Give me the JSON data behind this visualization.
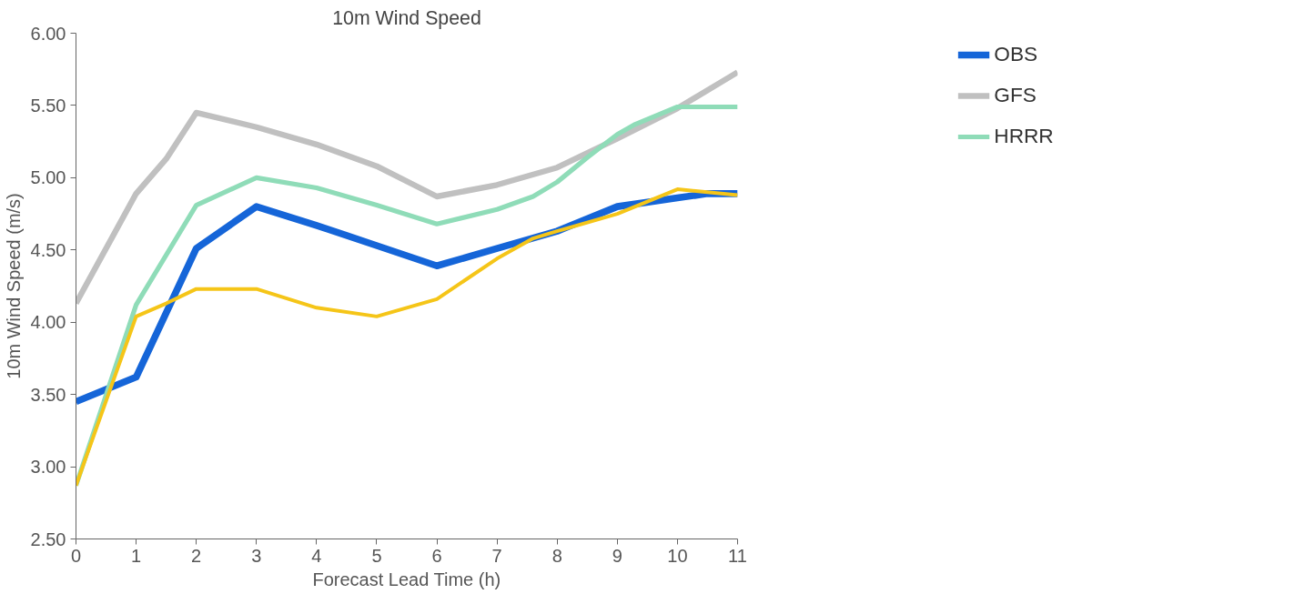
{
  "chart_data": {
    "type": "line",
    "title": "10m Wind Speed",
    "xlabel": "Forecast Lead Time (h)",
    "ylabel": "10m Wind Speed (m/s)",
    "xlim": [
      0,
      11
    ],
    "xticks": [
      0,
      1,
      2,
      3,
      4,
      5,
      6,
      7,
      8,
      9,
      10,
      11
    ],
    "ylim": [
      2.5,
      6.0
    ],
    "yticks": [
      {
        "value": 2.5,
        "label": "2.50"
      },
      {
        "value": 3.0,
        "label": "3.00"
      },
      {
        "value": 3.5,
        "label": "3.50"
      },
      {
        "value": 4.0,
        "label": "4.00"
      },
      {
        "value": 4.5,
        "label": "4.50"
      },
      {
        "value": 5.0,
        "label": "5.00"
      },
      {
        "value": 5.5,
        "label": "5.50"
      },
      {
        "value": 6.0,
        "label": "6.00"
      }
    ],
    "grid": false,
    "legend": "right",
    "marker": "none",
    "line_style": "solid",
    "series": [
      {
        "name": "OBS",
        "color": "#1565d8",
        "x": [
          0,
          1,
          2,
          3,
          4,
          5,
          6,
          7,
          8,
          9,
          10,
          10.5,
          11
        ],
        "values": [
          3.45,
          3.62,
          4.51,
          4.8,
          4.67,
          4.53,
          4.39,
          4.51,
          4.63,
          4.8,
          4.86,
          4.89,
          4.89
        ]
      },
      {
        "name": "GFS",
        "color": "#c0c0c0",
        "x": [
          0,
          1,
          1.5,
          2,
          3,
          4,
          5,
          6,
          7,
          8,
          9,
          10,
          11
        ],
        "values": [
          4.13,
          4.89,
          5.13,
          5.45,
          5.35,
          5.23,
          5.08,
          4.87,
          4.95,
          5.07,
          5.27,
          5.48,
          5.73
        ]
      },
      {
        "name": "HRRR",
        "color": "#8fdcb8",
        "x": [
          0,
          1,
          2,
          3,
          4,
          5,
          6,
          7,
          7.6,
          8,
          8.5,
          9,
          9.3,
          10,
          11
        ],
        "values": [
          2.87,
          4.12,
          4.81,
          5.0,
          4.93,
          4.81,
          4.68,
          4.78,
          4.87,
          4.97,
          5.14,
          5.3,
          5.37,
          5.49,
          5.49
        ]
      },
      {
        "color": "#f5c518",
        "x": [
          0,
          1,
          1.5,
          2,
          3,
          4,
          5,
          6,
          7,
          7.6,
          8,
          9,
          10,
          11
        ],
        "values": [
          2.87,
          4.04,
          4.13,
          4.23,
          4.23,
          4.1,
          4.04,
          4.16,
          4.44,
          4.58,
          4.63,
          4.75,
          4.92,
          4.88
        ]
      }
    ]
  }
}
